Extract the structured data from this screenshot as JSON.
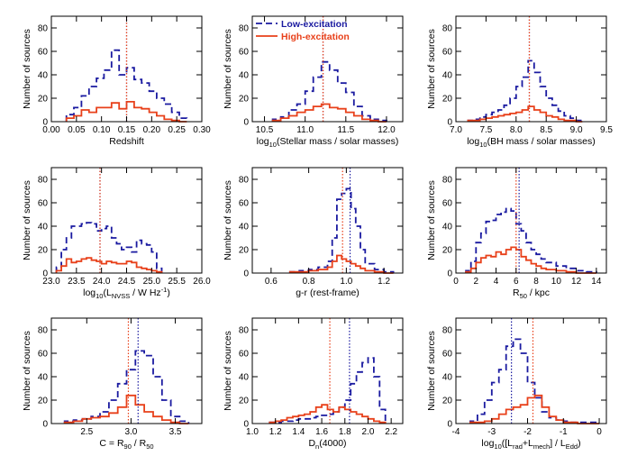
{
  "colors": {
    "low": "#1a1aa0",
    "high": "#e8401a",
    "axis": "#000000"
  },
  "legend": {
    "low_label": "Low-excitation",
    "high_label": "High-excitation"
  },
  "chart_data": [
    {
      "type": "bar",
      "id": "redshift",
      "xlabel": "Redshift",
      "ylabel": "Number of sources",
      "xlim": [
        0.0,
        0.3
      ],
      "ylim": [
        0,
        90
      ],
      "xticks": [
        0.0,
        0.05,
        0.1,
        0.15,
        0.2,
        0.25,
        0.3
      ],
      "xtick_labels": [
        "0.00",
        "0.05",
        "0.10",
        "0.15",
        "0.20",
        "0.25",
        "0.30"
      ],
      "yticks": [
        0,
        20,
        40,
        60,
        80
      ],
      "bin_edges": [
        0.03,
        0.045,
        0.06,
        0.075,
        0.09,
        0.105,
        0.12,
        0.135,
        0.15,
        0.165,
        0.18,
        0.195,
        0.21,
        0.225,
        0.24,
        0.255,
        0.27
      ],
      "series": [
        {
          "name": "Low-excitation",
          "values": [
            6,
            12,
            22,
            30,
            37,
            44,
            61,
            40,
            46,
            36,
            33,
            26,
            20,
            15,
            8,
            3
          ]
        },
        {
          "name": "High-excitation",
          "values": [
            3,
            5,
            10,
            8,
            12,
            12,
            16,
            11,
            17,
            12,
            11,
            8,
            5,
            2,
            1,
            0
          ]
        }
      ],
      "vlines": [
        {
          "x": 0.15,
          "series": "low"
        },
        {
          "x": 0.15,
          "series": "high"
        }
      ]
    },
    {
      "type": "bar",
      "id": "stellar_mass",
      "xlabel_main": "log",
      "xlabel_sub": "10",
      "xlabel_rest": "(Stellar mass / solar masses)",
      "ylabel": "Number of sources",
      "xlim": [
        10.35,
        12.2
      ],
      "ylim": [
        0,
        90
      ],
      "xticks": [
        10.5,
        11.0,
        11.5,
        12.0
      ],
      "xtick_labels": [
        "10.5",
        "11.0",
        "11.5",
        "12.0"
      ],
      "yticks": [
        0,
        20,
        40,
        60,
        80
      ],
      "bin_edges": [
        10.6,
        10.7,
        10.8,
        10.9,
        11.0,
        11.1,
        11.2,
        11.3,
        11.4,
        11.5,
        11.6,
        11.7,
        11.8,
        11.9,
        12.0
      ],
      "series": [
        {
          "name": "Low-excitation",
          "values": [
            2,
            4,
            10,
            15,
            26,
            38,
            51,
            44,
            33,
            25,
            13,
            5,
            2,
            1
          ]
        },
        {
          "name": "High-excitation",
          "values": [
            1,
            3,
            5,
            8,
            10,
            13,
            15,
            12,
            11,
            8,
            5,
            2,
            1,
            0
          ]
        }
      ],
      "vlines": [
        {
          "x": 11.22,
          "series": "low"
        },
        {
          "x": 11.22,
          "series": "high"
        }
      ]
    },
    {
      "type": "bar",
      "id": "bh_mass",
      "xlabel_main": "log",
      "xlabel_sub": "10",
      "xlabel_rest": "(BH mass / solar masses)",
      "ylabel": "Number of sources",
      "xlim": [
        7.0,
        9.5
      ],
      "ylim": [
        0,
        90
      ],
      "xticks": [
        7.0,
        7.5,
        8.0,
        8.5,
        9.0,
        9.5
      ],
      "xtick_labels": [
        "7.0",
        "7.5",
        "8.0",
        "8.5",
        "9.0",
        "9.5"
      ],
      "yticks": [
        0,
        20,
        40,
        60,
        80
      ],
      "bin_edges": [
        7.2,
        7.3,
        7.4,
        7.5,
        7.6,
        7.7,
        7.8,
        7.9,
        8.0,
        8.1,
        8.2,
        8.3,
        8.4,
        8.5,
        8.6,
        8.7,
        8.8,
        8.9,
        9.0,
        9.1
      ],
      "series": [
        {
          "name": "Low-excitation",
          "values": [
            1,
            2,
            4,
            6,
            8,
            10,
            14,
            20,
            30,
            38,
            52,
            42,
            30,
            20,
            14,
            9,
            5,
            3,
            1
          ]
        },
        {
          "name": "High-excitation",
          "values": [
            1,
            1,
            2,
            3,
            4,
            5,
            6,
            7,
            8,
            10,
            13,
            10,
            8,
            5,
            4,
            2,
            1,
            1,
            0
          ]
        }
      ],
      "vlines": [
        {
          "x": 8.22,
          "series": "low"
        },
        {
          "x": 8.22,
          "series": "high"
        }
      ]
    },
    {
      "type": "bar",
      "id": "radio_luminosity",
      "xlabel_main": "log",
      "xlabel_sub": "10",
      "xlabel_rest": "(L",
      "xlabel_sub2": "NVSS",
      "xlabel_rest2": " / W Hz",
      "xlabel_sup": "-1",
      "xlabel_end": ")",
      "ylabel": "Number of sources",
      "xlim": [
        23.0,
        26.0
      ],
      "ylim": [
        0,
        90
      ],
      "xticks": [
        23.0,
        23.5,
        24.0,
        24.5,
        25.0,
        25.5,
        26.0
      ],
      "xtick_labels": [
        "23.0",
        "23.5",
        "24.0",
        "24.5",
        "25.0",
        "25.5",
        "26.0"
      ],
      "yticks": [
        0,
        20,
        40,
        60,
        80
      ],
      "bin_edges": [
        23.1,
        23.2,
        23.3,
        23.4,
        23.5,
        23.6,
        23.7,
        23.8,
        23.9,
        24.0,
        24.1,
        24.2,
        24.3,
        24.4,
        24.5,
        24.6,
        24.7,
        24.8,
        24.9,
        25.0,
        25.1,
        25.2
      ],
      "series": [
        {
          "name": "Low-excitation",
          "values": [
            5,
            20,
            30,
            40,
            40,
            42,
            43,
            42,
            36,
            38,
            40,
            30,
            25,
            20,
            22,
            18,
            28,
            25,
            24,
            18,
            4
          ]
        },
        {
          "name": "High-excitation",
          "values": [
            2,
            6,
            12,
            9,
            10,
            12,
            13,
            11,
            10,
            8,
            10,
            9,
            8,
            8,
            10,
            9,
            5,
            4,
            3,
            2,
            1
          ]
        }
      ],
      "vlines": [
        {
          "x": 23.97,
          "series": "low"
        },
        {
          "x": 23.97,
          "series": "high"
        }
      ]
    },
    {
      "type": "bar",
      "id": "colour",
      "xlabel": "g-r (rest-frame)",
      "ylabel": "Number of sources",
      "xlim": [
        0.5,
        1.3
      ],
      "ylim": [
        0,
        90
      ],
      "xticks": [
        0.6,
        0.8,
        1.0,
        1.2
      ],
      "xtick_labels": [
        "0.6",
        "0.8",
        "1.0",
        "1.2"
      ],
      "yticks": [
        0,
        20,
        40,
        60,
        80
      ],
      "bin_edges": [
        0.7,
        0.75,
        0.8,
        0.85,
        0.9,
        0.925,
        0.95,
        0.975,
        1.0,
        1.025,
        1.05,
        1.075,
        1.1,
        1.15,
        1.2,
        1.25
      ],
      "series": [
        {
          "name": "Low-excitation",
          "values": [
            1,
            2,
            3,
            5,
            10,
            30,
            63,
            68,
            72,
            55,
            40,
            20,
            8,
            3,
            1
          ]
        },
        {
          "name": "High-excitation",
          "values": [
            1,
            1,
            2,
            3,
            5,
            10,
            15,
            12,
            10,
            8,
            6,
            4,
            2,
            1,
            0
          ]
        }
      ],
      "vlines": [
        {
          "x": 1.02,
          "series": "low"
        },
        {
          "x": 0.98,
          "series": "high"
        }
      ]
    },
    {
      "type": "bar",
      "id": "r50",
      "xlabel_main": "R",
      "xlabel_sub": "50",
      "xlabel_rest": " / kpc",
      "ylabel": "Number of sources",
      "xlim": [
        0,
        15
      ],
      "ylim": [
        0,
        90
      ],
      "xticks": [
        0,
        2,
        4,
        6,
        8,
        10,
        12,
        14
      ],
      "xtick_labels": [
        "0",
        "2",
        "4",
        "6",
        "8",
        "10",
        "12",
        "14"
      ],
      "yticks": [
        0,
        20,
        40,
        60,
        80
      ],
      "bin_edges": [
        1.0,
        1.5,
        2.0,
        2.5,
        3.0,
        3.5,
        4.0,
        4.5,
        5.0,
        5.5,
        6.0,
        6.5,
        7.0,
        7.5,
        8.0,
        8.5,
        9.0,
        10.0,
        11.0,
        12.0,
        13.0,
        14.0
      ],
      "series": [
        {
          "name": "Low-excitation",
          "values": [
            2,
            10,
            26,
            34,
            44,
            45,
            50,
            52,
            55,
            53,
            42,
            36,
            26,
            20,
            16,
            12,
            9,
            6,
            4,
            2,
            1
          ]
        },
        {
          "name": "High-excitation",
          "values": [
            1,
            4,
            9,
            13,
            15,
            14,
            18,
            16,
            20,
            22,
            20,
            14,
            11,
            8,
            6,
            4,
            3,
            2,
            1,
            0,
            0
          ]
        }
      ],
      "vlines": [
        {
          "x": 6.3,
          "series": "low"
        },
        {
          "x": 6.0,
          "series": "high"
        }
      ]
    },
    {
      "type": "bar",
      "id": "concentration",
      "xlabel_main": "C = R",
      "xlabel_sub": "90",
      "xlabel_rest": " / R",
      "xlabel_sub2": "50",
      "ylabel": "Number of sources",
      "xlim": [
        2.1,
        3.8
      ],
      "ylim": [
        0,
        90
      ],
      "xticks": [
        2.5,
        3.0,
        3.5
      ],
      "xtick_labels": [
        "2.5",
        "3.0",
        "3.5"
      ],
      "yticks": [
        0,
        20,
        40,
        60,
        80
      ],
      "bin_edges": [
        2.25,
        2.35,
        2.45,
        2.55,
        2.65,
        2.75,
        2.85,
        2.95,
        3.05,
        3.15,
        3.25,
        3.35,
        3.45,
        3.55,
        3.65
      ],
      "series": [
        {
          "name": "Low-excitation",
          "values": [
            2,
            3,
            4,
            6,
            10,
            20,
            34,
            46,
            62,
            58,
            40,
            20,
            6,
            2
          ]
        },
        {
          "name": "High-excitation",
          "values": [
            1,
            2,
            4,
            5,
            6,
            9,
            14,
            24,
            16,
            10,
            6,
            3,
            1,
            0
          ]
        }
      ],
      "vlines": [
        {
          "x": 3.08,
          "series": "low"
        },
        {
          "x": 2.97,
          "series": "high"
        }
      ]
    },
    {
      "type": "bar",
      "id": "dn4000",
      "xlabel_main": "D",
      "xlabel_sub": "n",
      "xlabel_rest": "(4000)",
      "ylabel": "Number of sources",
      "xlim": [
        1.0,
        2.3
      ],
      "ylim": [
        0,
        90
      ],
      "xticks": [
        1.0,
        1.2,
        1.4,
        1.6,
        1.8,
        2.0,
        2.2
      ],
      "xtick_labels": [
        "1.0",
        "1.2",
        "1.4",
        "1.6",
        "1.8",
        "2.0",
        "2.2"
      ],
      "yticks": [
        0,
        20,
        40,
        60,
        80
      ],
      "bin_edges": [
        1.15,
        1.2,
        1.25,
        1.3,
        1.35,
        1.4,
        1.45,
        1.5,
        1.55,
        1.6,
        1.65,
        1.7,
        1.75,
        1.8,
        1.85,
        1.9,
        1.95,
        2.0,
        2.05,
        2.1,
        2.15
      ],
      "series": [
        {
          "name": "Low-excitation",
          "values": [
            1,
            1,
            2,
            2,
            3,
            4,
            4,
            5,
            6,
            7,
            8,
            10,
            14,
            20,
            34,
            44,
            52,
            56,
            40,
            12
          ]
        },
        {
          "name": "High-excitation",
          "values": [
            1,
            2,
            3,
            5,
            6,
            7,
            8,
            10,
            14,
            16,
            12,
            10,
            14,
            12,
            10,
            8,
            6,
            4,
            2,
            1
          ]
        }
      ],
      "vlines": [
        {
          "x": 1.84,
          "series": "low"
        },
        {
          "x": 1.67,
          "series": "high"
        }
      ]
    },
    {
      "type": "bar",
      "id": "eddington",
      "xlabel_main": "log",
      "xlabel_sub": "10",
      "xlabel_rest": "([L",
      "xlabel_sub2": "rad",
      "xlabel_rest2": "+L",
      "xlabel_sub3": "mech",
      "xlabel_rest3": "] / L",
      "xlabel_sub4": "Edd",
      "xlabel_end": ")",
      "ylabel": "Number of sources",
      "xlim": [
        -4,
        0.2
      ],
      "ylim": [
        0,
        90
      ],
      "xticks": [
        -4,
        -3,
        -2,
        -1,
        0
      ],
      "xtick_labels": [
        "-4",
        "-3",
        "-2",
        "-1",
        "0"
      ],
      "yticks": [
        0,
        20,
        40,
        60,
        80
      ],
      "bin_edges": [
        -3.6,
        -3.4,
        -3.2,
        -3.0,
        -2.8,
        -2.6,
        -2.4,
        -2.2,
        -2.0,
        -1.8,
        -1.6,
        -1.4,
        -1.2,
        -1.0,
        -0.8,
        -0.6,
        -0.4,
        -0.2,
        0.0
      ],
      "series": [
        {
          "name": "Low-excitation",
          "values": [
            2,
            8,
            20,
            35,
            46,
            66,
            72,
            60,
            35,
            22,
            10,
            5,
            3,
            2,
            1,
            1,
            1,
            1
          ]
        },
        {
          "name": "High-excitation",
          "values": [
            1,
            1,
            2,
            4,
            8,
            12,
            14,
            16,
            22,
            24,
            14,
            6,
            3,
            1,
            1,
            0,
            0,
            0
          ]
        }
      ],
      "vlines": [
        {
          "x": -2.45,
          "series": "low"
        },
        {
          "x": -1.85,
          "series": "high"
        }
      ]
    }
  ]
}
